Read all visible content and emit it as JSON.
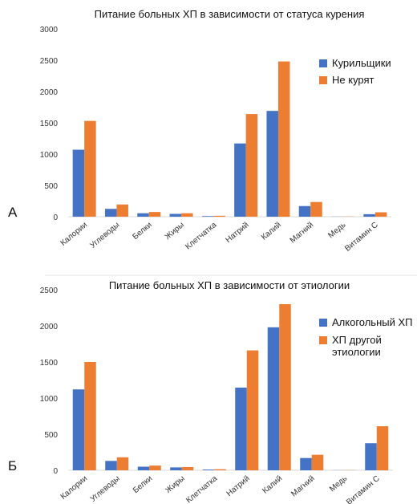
{
  "colors": {
    "series_a": "#4472C4",
    "series_b": "#ED7D31"
  },
  "panel_labels": [
    "А",
    "Б"
  ],
  "chart_data": [
    {
      "type": "bar",
      "title": "Питание больных ХП в зависимости от статуса курения",
      "categories": [
        "Калории",
        "Углеводы",
        "Белки",
        "Жиры",
        "Клетчатка",
        "Натрий",
        "Калий",
        "Магний",
        "Медь",
        "Витамин С"
      ],
      "series": [
        {
          "name": "Курильщики",
          "values": [
            1070,
            125,
            55,
            45,
            10,
            1170,
            1690,
            170,
            2,
            40
          ]
        },
        {
          "name": "Не курят",
          "values": [
            1530,
            195,
            75,
            55,
            15,
            1640,
            2480,
            235,
            3,
            70
          ]
        }
      ],
      "ylim": [
        0,
        3000
      ],
      "yticks": [
        0,
        500,
        1000,
        1500,
        2000,
        2500,
        3000
      ],
      "grid": false,
      "legend_position": "right"
    },
    {
      "type": "bar",
      "title": "Питание больных ХП в зависимости от этиологии",
      "categories": [
        "Калории",
        "Углеводы",
        "Белки",
        "Жиры",
        "Клетчатка",
        "Натрий",
        "Калий",
        "Магний",
        "Медь",
        "Витамин С"
      ],
      "series": [
        {
          "name": "Алкогольный ХП",
          "values": [
            1120,
            130,
            50,
            40,
            10,
            1145,
            1980,
            170,
            2,
            375
          ]
        },
        {
          "name": "ХП другой этиологии",
          "values": [
            1500,
            180,
            65,
            45,
            15,
            1660,
            2300,
            215,
            3,
            610
          ]
        }
      ],
      "ylim": [
        0,
        2500
      ],
      "yticks": [
        0,
        500,
        1000,
        1500,
        2000,
        2500
      ],
      "grid": false,
      "legend_position": "right"
    }
  ]
}
